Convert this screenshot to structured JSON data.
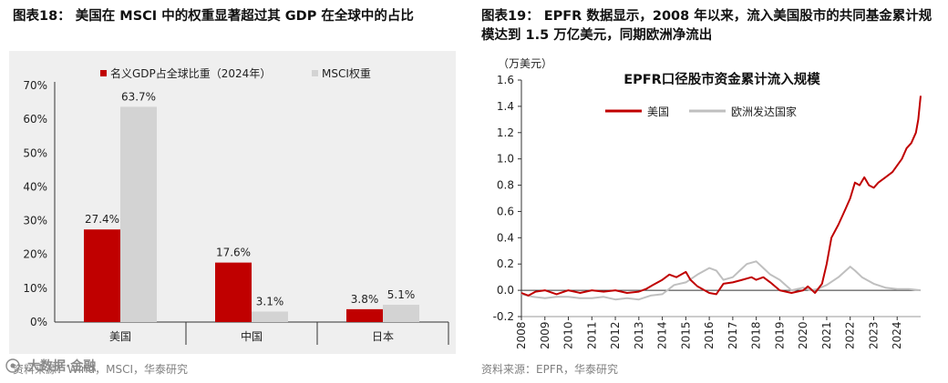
{
  "left": {
    "figure_title": "图表18：  美国在 MSCI 中的权重显著超过其 GDP 在全球中的占比",
    "source": "资料来源：Wind，MSCI，华泰研究",
    "watermark_text": "大数据·金融"
  },
  "right": {
    "figure_title": "图表19：  EPFR 数据显示，2008 年以来，流入美国股市的共同基金累计规模达到 1.5 万亿美元，同期欧洲净流出",
    "source": "资料来源：EPFR，华泰研究"
  },
  "chart_data": [
    {
      "type": "bar",
      "title": "",
      "categories": [
        "美国",
        "中国",
        "日本"
      ],
      "series": [
        {
          "name": "名义GDP占全球比重（2024年）",
          "values": [
            27.4,
            17.6,
            3.8
          ],
          "color": "#c00000"
        },
        {
          "name": "MSCI权重",
          "values": [
            63.7,
            3.1,
            5.1
          ],
          "color": "#d3d3d3"
        }
      ],
      "data_labels": [
        [
          "27.4%",
          "17.6%",
          "3.8%"
        ],
        [
          "63.7%",
          "3.1%",
          "5.1%"
        ]
      ],
      "ylim": [
        0,
        70
      ],
      "yticks": [
        "0%",
        "10%",
        "20%",
        "30%",
        "40%",
        "50%",
        "60%",
        "70%"
      ],
      "xlabel": "",
      "ylabel": "",
      "legend": "top-left",
      "grid": false
    },
    {
      "type": "line",
      "title": "EPFR口径股市资金累计流入规模",
      "ylabel": "（万美元）",
      "xlabel": "",
      "ylim": [
        -0.2,
        1.6
      ],
      "yticks": [
        "-0.2",
        "0.0",
        "0.2",
        "0.4",
        "0.6",
        "0.8",
        "1.0",
        "1.2",
        "1.4",
        "1.6"
      ],
      "xlim": [
        2008,
        2025
      ],
      "xticks": [
        "2008",
        "2009",
        "2010",
        "2011",
        "2012",
        "2013",
        "2014",
        "2015",
        "2016",
        "2017",
        "2018",
        "2019",
        "2020",
        "2021",
        "2022",
        "2023",
        "2024"
      ],
      "legend": "top-left",
      "grid": false,
      "series": [
        {
          "name": "美国",
          "color": "#c00000",
          "x": [
            2008,
            2008.3,
            2008.6,
            2009,
            2009.5,
            2010,
            2010.5,
            2011,
            2011.5,
            2012,
            2012.5,
            2013,
            2013.3,
            2013.6,
            2014,
            2014.3,
            2014.6,
            2015,
            2015.2,
            2015.5,
            2015.8,
            2016,
            2016.3,
            2016.6,
            2017,
            2017.4,
            2017.8,
            2018,
            2018.3,
            2018.6,
            2019,
            2019.5,
            2020,
            2020.2,
            2020.5,
            2020.8,
            2021,
            2021.2,
            2021.5,
            2021.8,
            2022,
            2022.2,
            2022.4,
            2022.6,
            2022.8,
            2023,
            2023.2,
            2023.5,
            2023.8,
            2024,
            2024.2,
            2024.4,
            2024.6,
            2024.8,
            2024.9,
            2025
          ],
          "values": [
            -0.02,
            -0.04,
            -0.01,
            0.0,
            -0.03,
            0.0,
            -0.02,
            0.0,
            -0.01,
            0.0,
            -0.02,
            -0.01,
            0.01,
            0.04,
            0.08,
            0.12,
            0.1,
            0.14,
            0.08,
            0.03,
            0.0,
            -0.02,
            -0.03,
            0.05,
            0.06,
            0.08,
            0.1,
            0.08,
            0.1,
            0.06,
            0.0,
            -0.02,
            0.0,
            0.03,
            -0.02,
            0.05,
            0.2,
            0.4,
            0.5,
            0.62,
            0.7,
            0.82,
            0.8,
            0.86,
            0.8,
            0.78,
            0.82,
            0.86,
            0.9,
            0.95,
            1.0,
            1.08,
            1.12,
            1.2,
            1.3,
            1.48
          ]
        },
        {
          "name": "欧洲发达国家",
          "color": "#bfbfbf",
          "x": [
            2008,
            2008.5,
            2009,
            2009.5,
            2010,
            2010.5,
            2011,
            2011.5,
            2012,
            2012.5,
            2013,
            2013.5,
            2014,
            2014.5,
            2015,
            2015.5,
            2016,
            2016.3,
            2016.6,
            2017,
            2017.3,
            2017.6,
            2018,
            2018.3,
            2018.6,
            2019,
            2019.5,
            2020,
            2020.3,
            2020.6,
            2021,
            2021.5,
            2022,
            2022.2,
            2022.5,
            2023,
            2023.5,
            2024,
            2024.5,
            2025
          ],
          "values": [
            -0.03,
            -0.05,
            -0.06,
            -0.05,
            -0.05,
            -0.06,
            -0.06,
            -0.05,
            -0.07,
            -0.06,
            -0.07,
            -0.04,
            -0.03,
            0.04,
            0.06,
            0.12,
            0.17,
            0.15,
            0.08,
            0.1,
            0.15,
            0.2,
            0.22,
            0.17,
            0.12,
            0.08,
            0.0,
            0.02,
            0.0,
            0.01,
            0.04,
            0.1,
            0.18,
            0.15,
            0.1,
            0.05,
            0.02,
            0.01,
            0.01,
            0.0
          ]
        }
      ]
    }
  ]
}
